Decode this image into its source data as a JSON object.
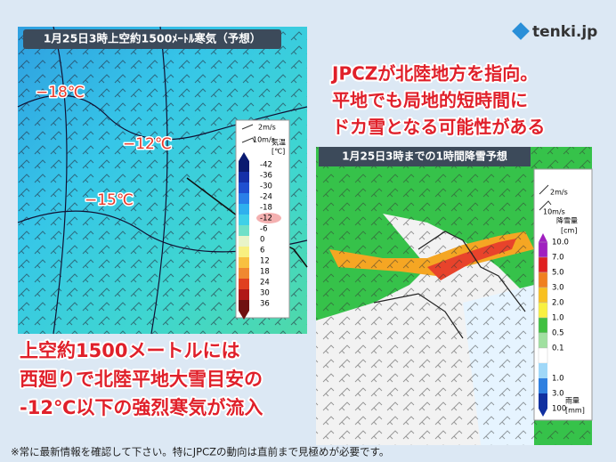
{
  "logo": "tenki.jp",
  "left_map": {
    "title": "1月25日3時上空約1500ﾒｰﾄﾙ寒気（予想）",
    "labels": [
      "−18℃",
      "−12℃",
      "−15℃"
    ],
    "legend": {
      "wind": [
        "2m/s",
        "10m/s"
      ],
      "unit_title": "気温",
      "unit": "[℃]",
      "ticks": [
        -42,
        -36,
        -30,
        -24,
        -18,
        -12,
        -6,
        0,
        6,
        12,
        18,
        24,
        30,
        36
      ]
    }
  },
  "headline": [
    "JPCZが北陸地方を指向。",
    "平地でも局地的短時間に",
    "ドカ雪となる可能性がある"
  ],
  "right_map": {
    "title": "1月25日3時までの1時間降雪予想",
    "legend": {
      "wind": [
        "2m/s",
        "10m/s"
      ],
      "snow_title": "降雪量",
      "snow_unit": "[cm]",
      "snow_ticks": [
        "10.0",
        "7.0",
        "5.0",
        "3.0",
        "2.0",
        "1.0",
        "0.5",
        "0.1"
      ],
      "rain_ticks": [
        "1.0",
        "3.0",
        "100"
      ],
      "rain_title": "雨量",
      "rain_unit": "[mm]"
    }
  },
  "caption": [
    "上空約1500メートルには",
    "西廻りで北陸平地大雪目安の",
    "-12℃以下の強烈寒気が流入"
  ],
  "footer": "※常に最新情報を確認して下さい。特にJPCZの動向は直前まで見極めが必要です。"
}
